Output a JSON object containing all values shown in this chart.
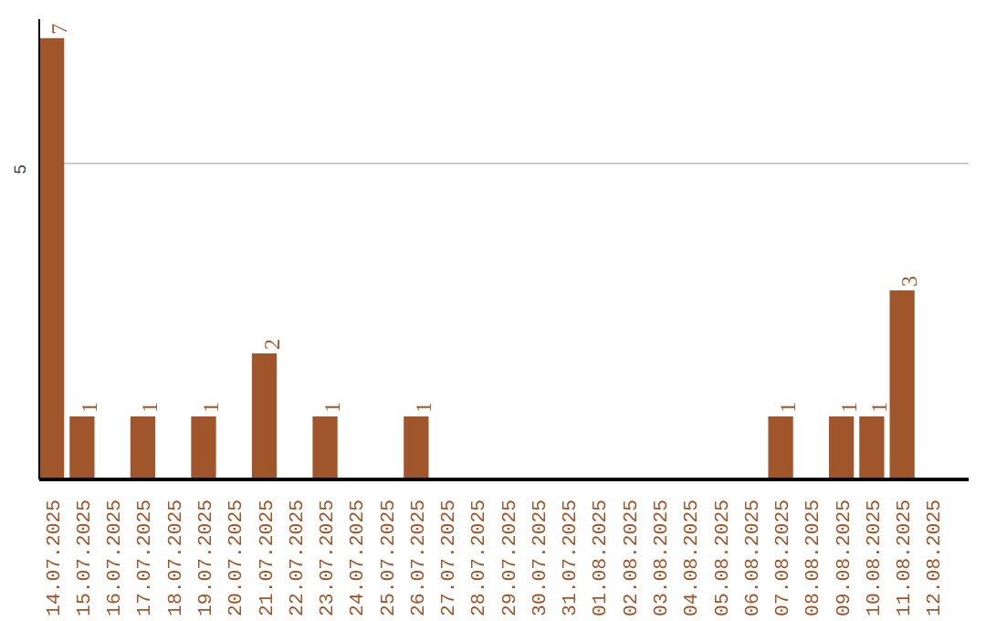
{
  "chart_data": {
    "type": "bar",
    "categories": [
      "14.07.2025",
      "15.07.2025",
      "16.07.2025",
      "17.07.2025",
      "18.07.2025",
      "19.07.2025",
      "20.07.2025",
      "21.07.2025",
      "22.07.2025",
      "23.07.2025",
      "24.07.2025",
      "25.07.2025",
      "26.07.2025",
      "27.07.2025",
      "28.07.2025",
      "29.07.2025",
      "30.07.2025",
      "31.07.2025",
      "01.08.2025",
      "02.08.2025",
      "03.08.2025",
      "04.08.2025",
      "05.08.2025",
      "06.08.2025",
      "07.08.2025",
      "08.08.2025",
      "09.08.2025",
      "10.08.2025",
      "11.08.2025",
      "12.08.2025"
    ],
    "values": [
      7,
      1,
      0,
      1,
      0,
      1,
      0,
      2,
      0,
      1,
      0,
      0,
      1,
      0,
      0,
      0,
      0,
      0,
      0,
      0,
      0,
      0,
      0,
      0,
      1,
      0,
      1,
      1,
      3,
      0
    ],
    "value_labels": [
      "7",
      "1",
      null,
      "1",
      null,
      "1",
      null,
      "2",
      null,
      "1",
      null,
      null,
      "1",
      null,
      null,
      null,
      null,
      null,
      null,
      null,
      null,
      null,
      null,
      null,
      "1",
      null,
      "1",
      "1",
      "3",
      null
    ],
    "color": "#a0562a",
    "ylim": [
      0,
      7.3
    ],
    "yticks": [
      5
    ],
    "grid": "y"
  }
}
